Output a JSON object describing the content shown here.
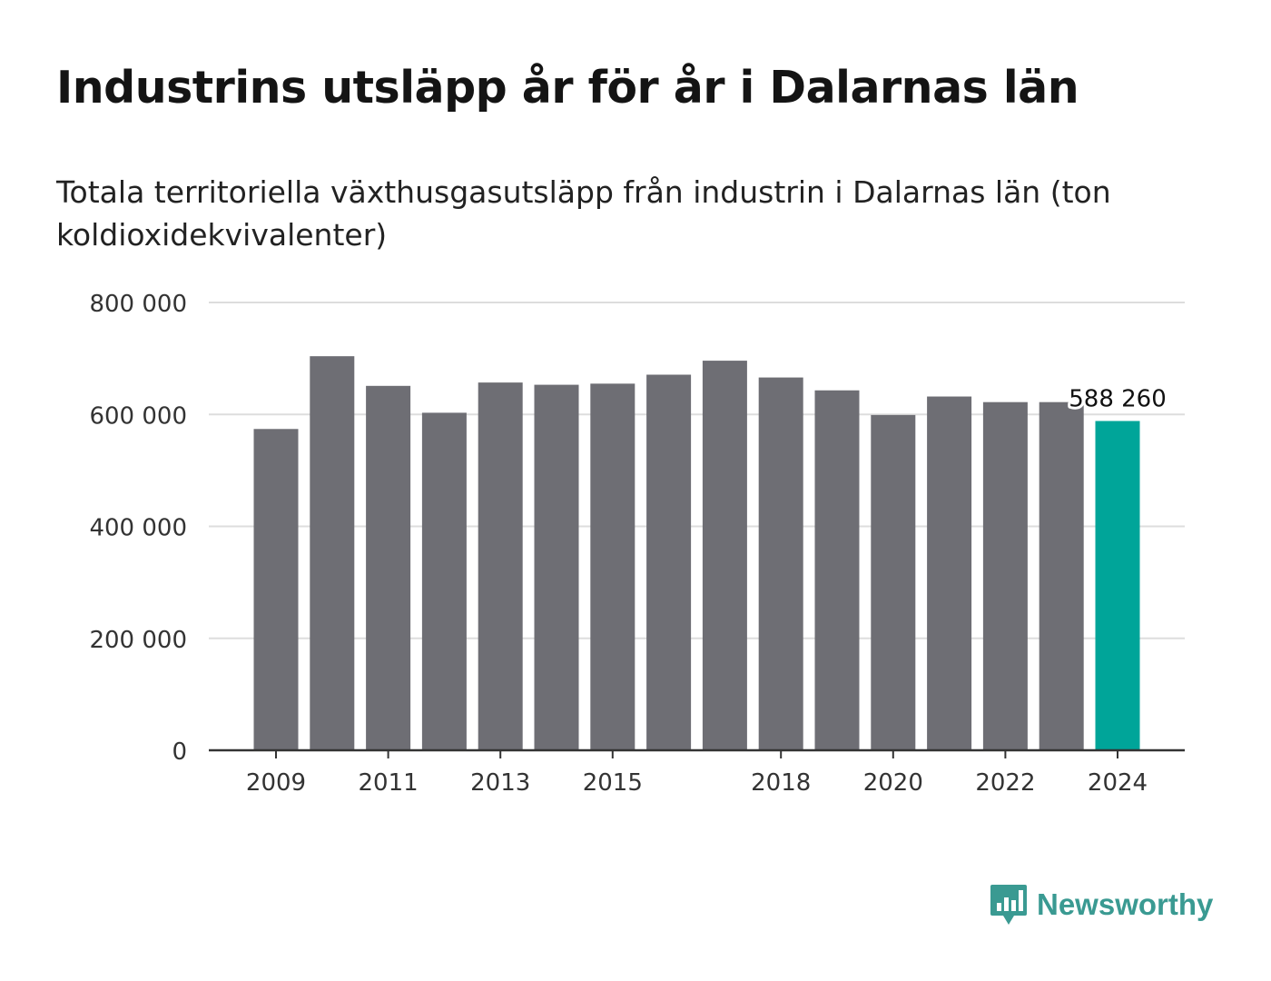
{
  "chart_data": {
    "type": "bar",
    "title": "Industrins utsläpp år för år i Dalarnas län",
    "subtitle": "Totala territoriella växthusgasutsläpp från industrin i Dalarnas län (ton koldioxidekvivalenter)",
    "categories": [
      "2009",
      "2010",
      "2011",
      "2012",
      "2013",
      "2014",
      "2015",
      "2016",
      "2017",
      "2018",
      "2019",
      "2020",
      "2021",
      "2022",
      "2023",
      "2024"
    ],
    "values": [
      574000,
      704000,
      651000,
      603000,
      657000,
      653000,
      655000,
      671000,
      696000,
      666000,
      643000,
      599000,
      632000,
      622000,
      622000,
      588260
    ],
    "x_tick_labels": [
      "2009",
      "",
      "2011",
      "",
      "2013",
      "",
      "2015",
      "",
      "",
      "2018",
      "",
      "2020",
      "",
      "2022",
      "",
      "2024"
    ],
    "y_ticks": [
      0,
      200000,
      400000,
      600000,
      800000
    ],
    "y_tick_labels": [
      "0",
      "200 000",
      "400 000",
      "600 000",
      "800 000"
    ],
    "ylim": [
      0,
      800000
    ],
    "xlabel": "",
    "ylabel": "",
    "grid": true,
    "highlight_index": 15,
    "highlight_label": "588 260",
    "colors": {
      "bar": "#6e6e74",
      "highlight": "#00a599",
      "grid": "#dddddd",
      "axis": "#333333",
      "text": "#333333"
    }
  },
  "brand": {
    "name": "Newsworthy",
    "icon": "newsworthy-logo-icon",
    "color": "#3a9a92"
  }
}
